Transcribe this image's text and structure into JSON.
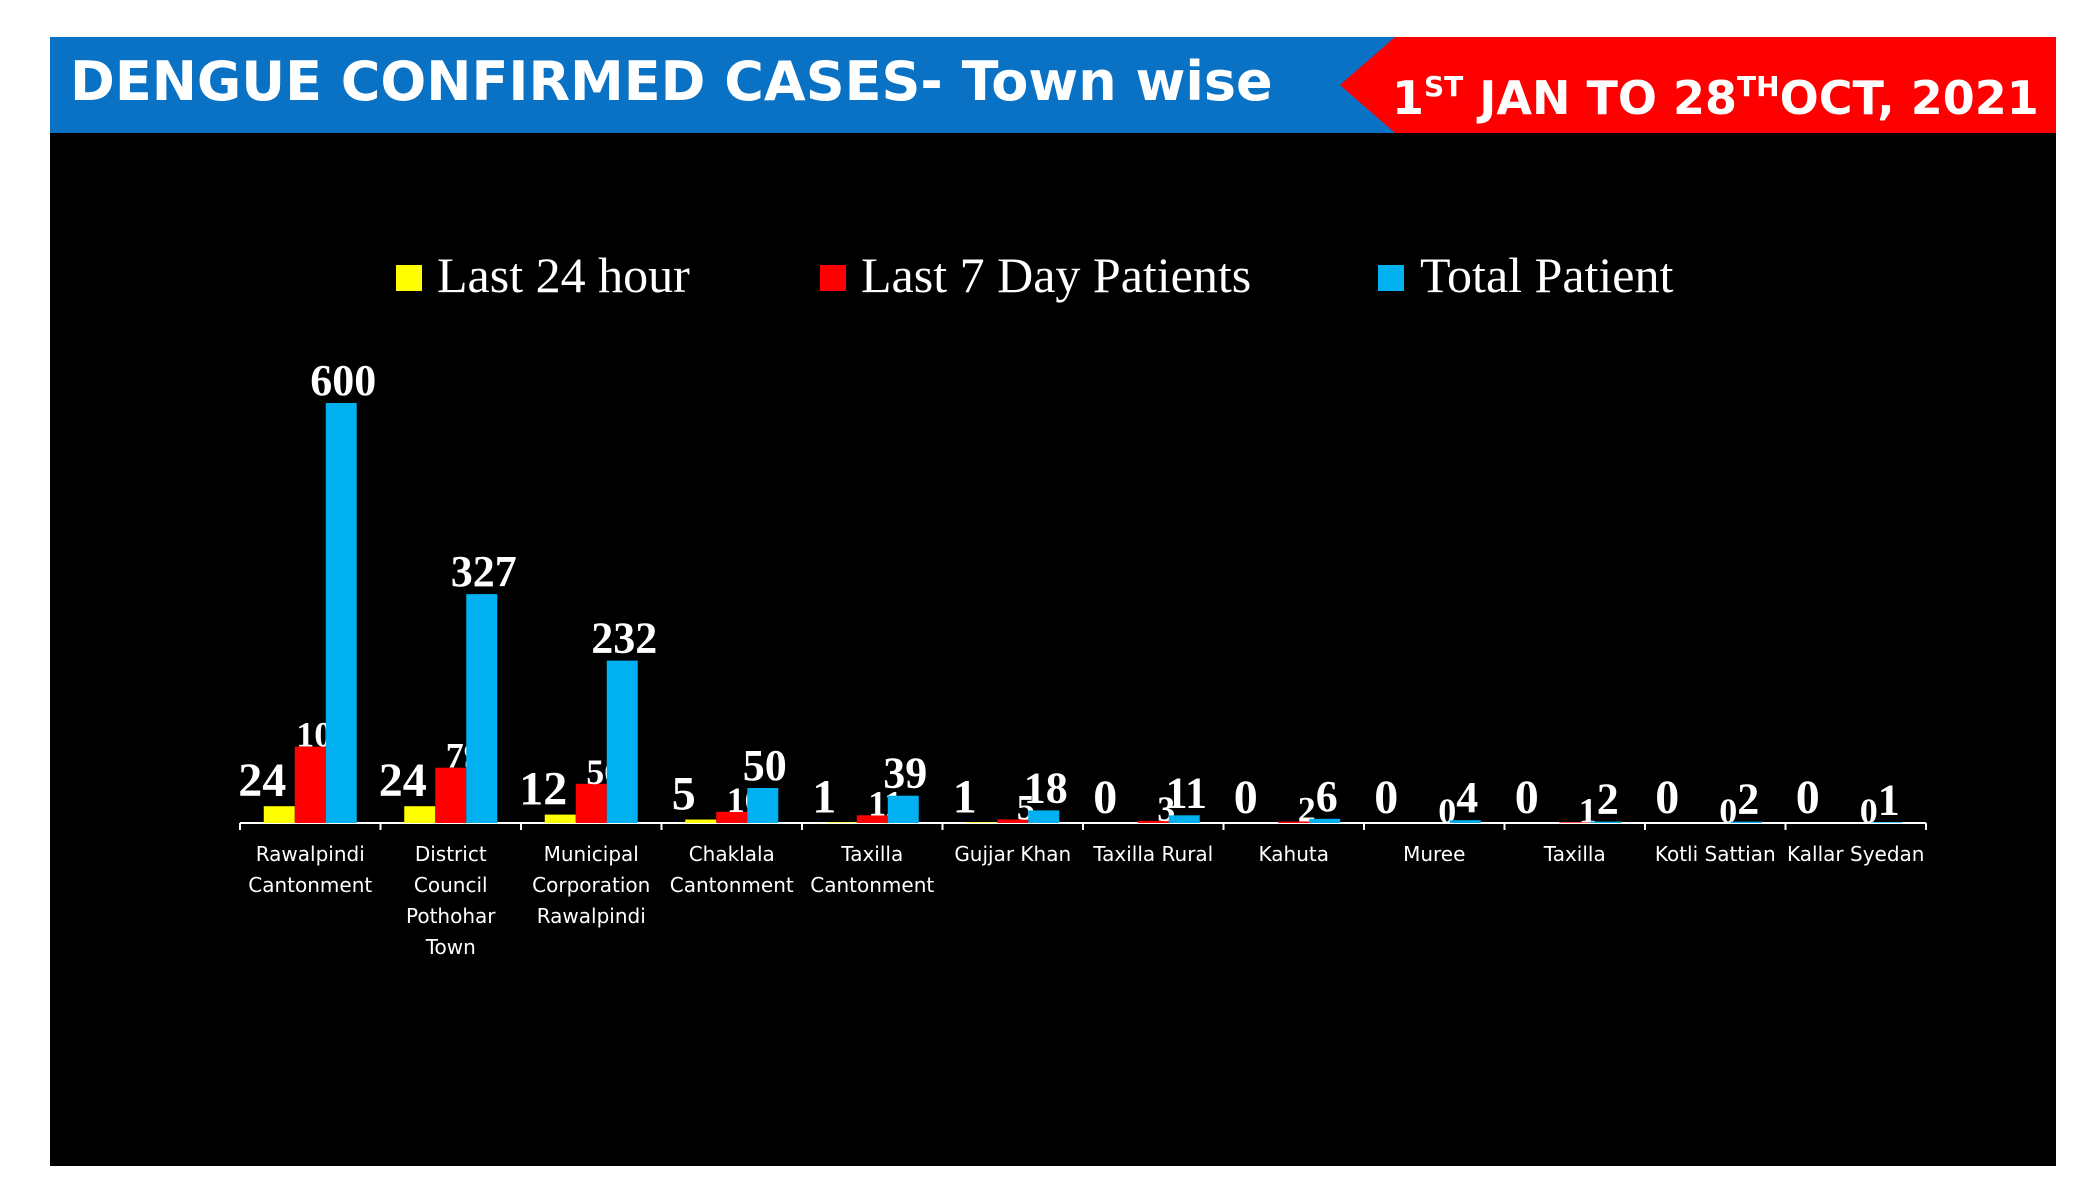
{
  "header": {
    "title": "DENGUE CONFIRMED CASES- Town wise",
    "date_parts": [
      "1",
      "ST",
      " JAN TO 28",
      "TH",
      "OCT, 2021"
    ]
  },
  "colors": {
    "header_blue": "#0a72c4",
    "header_red": "#ff0000",
    "background": "#000000"
  },
  "chart_data": {
    "type": "bar",
    "title": "",
    "xlabel": "",
    "ylabel": "",
    "ylim": [
      0,
      600
    ],
    "grid": false,
    "legend_position": "top",
    "categories": [
      "Rawalpindi Cantonment",
      "District Council Pothohar Town",
      "Municipal Corporation Rawalpindi",
      "Chaklala Cantonment",
      "Taxilla Cantonment",
      "Gujjar Khan",
      "Taxilla Rural",
      "Kahuta",
      "Muree",
      "Taxilla",
      "Kotli Sattian",
      "Kallar Syedan"
    ],
    "category_lines": [
      [
        "Rawalpindi",
        "Cantonment"
      ],
      [
        "District",
        "Council",
        "Pothohar",
        "Town"
      ],
      [
        "Municipal",
        "Corporation",
        "Rawalpindi"
      ],
      [
        "Chaklala",
        "Cantonment"
      ],
      [
        "Taxilla",
        "Cantonment"
      ],
      [
        "Gujjar Khan"
      ],
      [
        "Taxilla Rural"
      ],
      [
        "Kahuta"
      ],
      [
        "Muree"
      ],
      [
        "Taxilla"
      ],
      [
        "Kotli Sattian"
      ],
      [
        "Kallar Syedan"
      ]
    ],
    "series": [
      {
        "name": "Last 24 hour",
        "color": "#ffff00",
        "values": [
          24,
          24,
          12,
          5,
          1,
          1,
          0,
          0,
          0,
          0,
          0,
          0
        ]
      },
      {
        "name": "Last 7 Day Patients",
        "color": "#ff0000",
        "values": [
          109,
          79,
          56,
          16,
          11,
          5,
          3,
          2,
          0,
          1,
          0,
          0
        ]
      },
      {
        "name": "Total Patient",
        "color": "#00b0f0",
        "values": [
          600,
          327,
          232,
          50,
          39,
          18,
          11,
          6,
          4,
          2,
          2,
          1
        ]
      }
    ]
  }
}
